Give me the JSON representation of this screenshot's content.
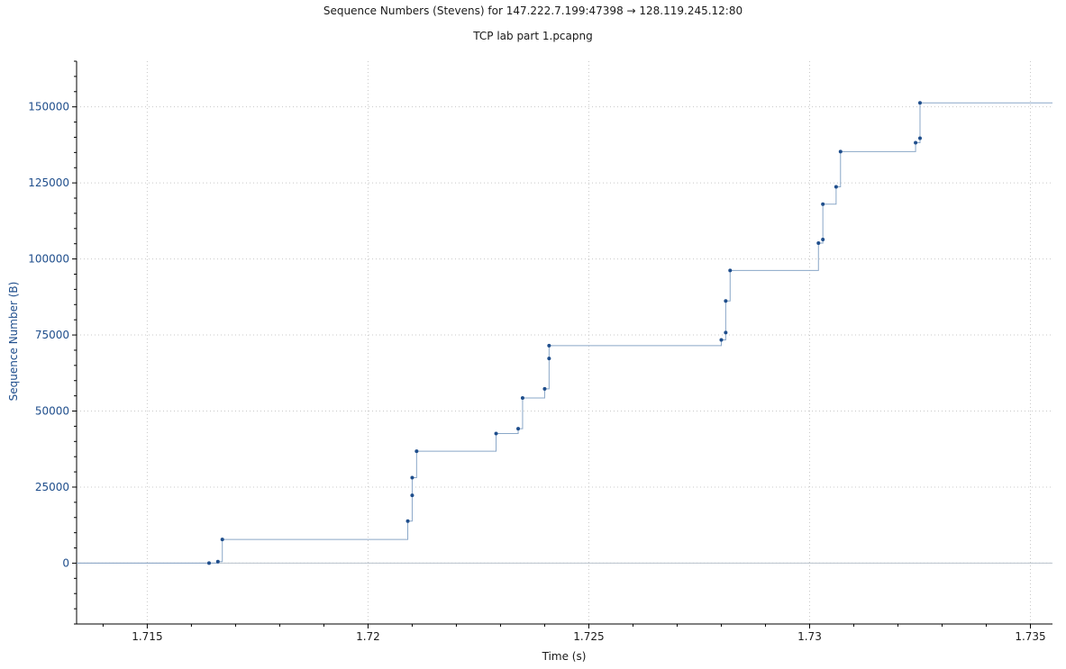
{
  "chart_data": {
    "type": "line",
    "title": "Sequence Numbers (Stevens) for 147.222.7.199:47398 → 128.119.245.12:80",
    "subtitle": "TCP lab part 1.pcapng",
    "xlabel": "Time (s)",
    "ylabel": "Sequence Number (B)",
    "xlim": [
      1.7134,
      1.7355
    ],
    "ylim": [
      -20000,
      165000
    ],
    "x_ticks": [
      1.715,
      1.72,
      1.725,
      1.73,
      1.735
    ],
    "x_tick_labels": [
      "1.715",
      "1.72",
      "1.725",
      "1.73",
      "1.735"
    ],
    "y_ticks": [
      0,
      25000,
      50000,
      75000,
      100000,
      125000,
      150000
    ],
    "y_tick_labels": [
      "0",
      "25000",
      "50000",
      "75000",
      "100000",
      "125000",
      "150000"
    ],
    "grid": true,
    "step_line": true,
    "series": [
      {
        "color": "#1f4e8c",
        "line_color": "#8aa7c8",
        "x": [
          1.7164,
          1.7166,
          1.7167,
          1.7209,
          1.721,
          1.721,
          1.7211,
          1.7229,
          1.7234,
          1.7235,
          1.724,
          1.7241,
          1.7241,
          1.728,
          1.7281,
          1.7281,
          1.7282,
          1.7302,
          1.7303,
          1.7303,
          1.7306,
          1.7307,
          1.7324,
          1.7325,
          1.7325
        ],
        "y": [
          0,
          500,
          7800,
          13800,
          22300,
          28100,
          36800,
          42600,
          44200,
          54300,
          57300,
          67300,
          71500,
          73400,
          75800,
          86200,
          96200,
          105200,
          106400,
          118000,
          123700,
          135300,
          138200,
          139700,
          151300
        ]
      }
    ],
    "line_end_x": 1.7355,
    "line_end_y": 151300
  }
}
